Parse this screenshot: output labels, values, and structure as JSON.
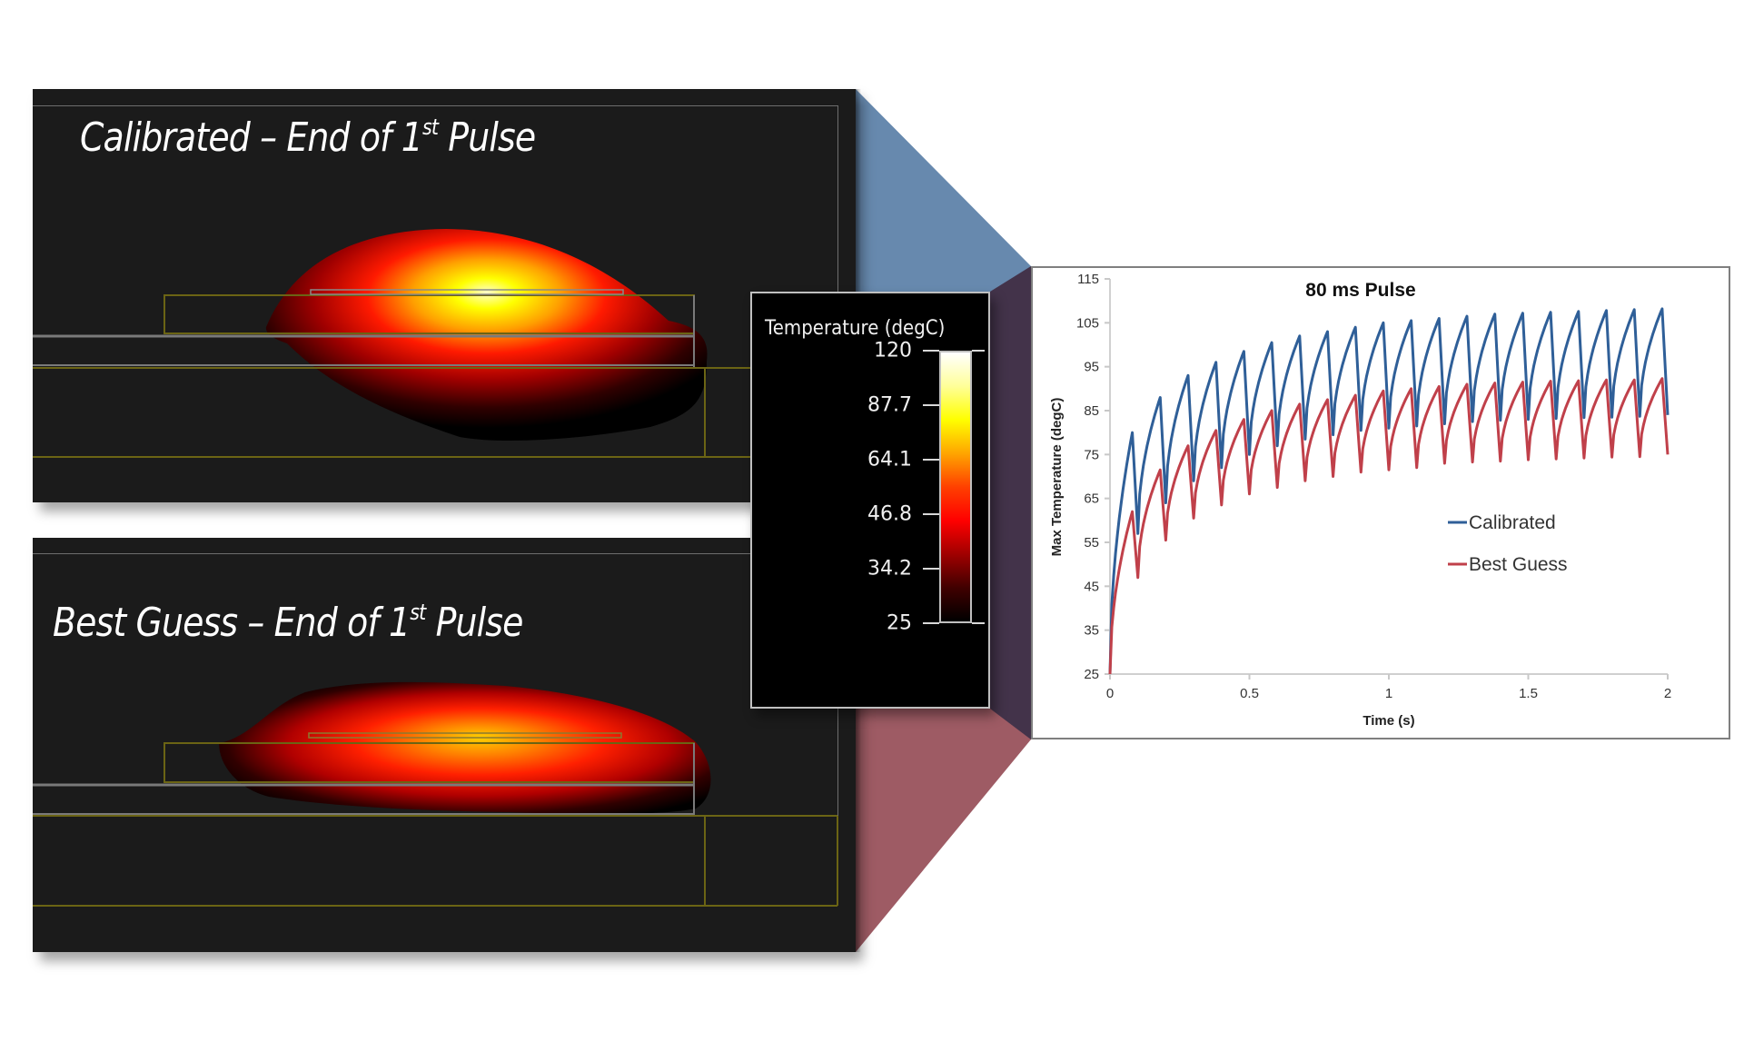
{
  "panels": {
    "top": {
      "title_main": "Calibrated – End of 1",
      "title_sup": "st",
      "title_end": " Pulse"
    },
    "bottom": {
      "title_main": "Best Guess – End of 1",
      "title_sup": "st",
      "title_end": " Pulse"
    }
  },
  "colorbar": {
    "title": "Temperature (degC)",
    "ticks": [
      "120",
      "87.7",
      "64.1",
      "46.8",
      "34.2",
      "25"
    ],
    "colormap": [
      "#ffffff",
      "#ffff99",
      "#ffff00",
      "#ffa500",
      "#ff4000",
      "#ff0000",
      "#a00000",
      "#400000",
      "#000000"
    ]
  },
  "colors": {
    "panel_bg": "#1b1b1b",
    "connector_top": "#6789ae",
    "connector_bottom": "#9e5b64",
    "connector_shadow": "#43334a",
    "calibrated": "#2f5f98",
    "best_guess": "#c0404a",
    "layer_yellow": "#6b6414",
    "layer_gray": "#7a7a7a"
  },
  "chart_data": {
    "type": "line",
    "title": "80 ms Pulse",
    "xlabel": "Time (s)",
    "ylabel": "Max Temperature (degC)",
    "xlim": [
      0,
      2
    ],
    "ylim": [
      25,
      115
    ],
    "xticks": [
      "0",
      "0.5",
      "1",
      "1.5",
      "2"
    ],
    "yticks": [
      "25",
      "35",
      "45",
      "55",
      "65",
      "75",
      "85",
      "95",
      "105",
      "115"
    ],
    "grid": false,
    "legend_position": "right-middle",
    "pulse_period_s": 0.1,
    "pulse_on_s": 0.08,
    "series": [
      {
        "name": "Calibrated",
        "color": "#2f5f98",
        "start": 25,
        "peaks": [
          80,
          88,
          93,
          96,
          98.5,
          100.5,
          102,
          103,
          104,
          105,
          105.5,
          106,
          106.5,
          107,
          107.2,
          107.4,
          107.6,
          107.8,
          108,
          108.2
        ],
        "troughs": [
          57,
          64,
          69,
          72,
          75,
          77,
          78.5,
          79.5,
          80.5,
          81,
          81.5,
          82,
          82.5,
          82.8,
          83,
          83.2,
          83.4,
          83.5,
          83.7,
          84
        ]
      },
      {
        "name": "Best Guess",
        "color": "#c0404a",
        "start": 25,
        "peaks": [
          62,
          71.5,
          77,
          80.5,
          83,
          85,
          86.5,
          87.5,
          88.5,
          89.5,
          90,
          90.5,
          91,
          91.3,
          91.5,
          91.7,
          91.8,
          92,
          92,
          92.3
        ],
        "troughs": [
          47,
          55.5,
          60.5,
          63.5,
          66,
          67.5,
          69,
          70,
          71,
          71.5,
          72,
          73,
          73.3,
          73.5,
          73.8,
          74,
          74.2,
          74.4,
          74.5,
          75
        ]
      }
    ]
  }
}
